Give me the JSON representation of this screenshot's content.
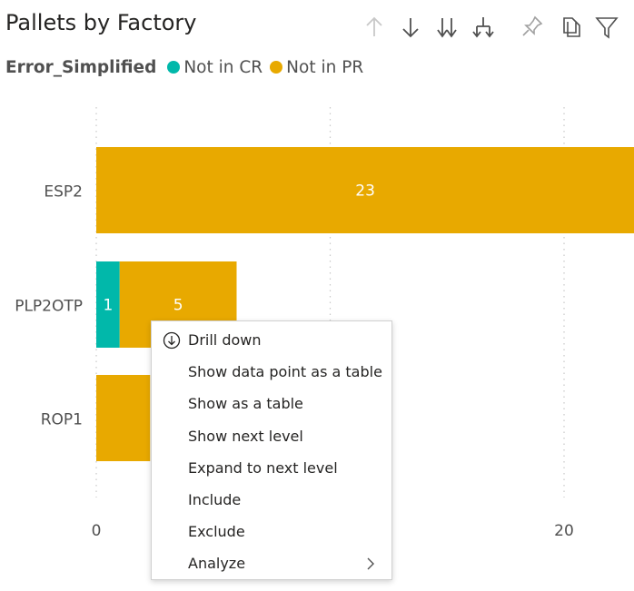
{
  "visual": {
    "title": "Pallets by Factory",
    "toolbar": [
      {
        "icon": "arrow-up-icon"
      },
      {
        "icon": "arrow-down-icon"
      },
      {
        "icon": "double-arrow-down-icon"
      },
      {
        "icon": "expand-hierarchy-icon"
      },
      {
        "icon": "pin-icon"
      },
      {
        "icon": "copy-icon"
      },
      {
        "icon": "filter-icon"
      }
    ]
  },
  "legend": {
    "title": "Error_Simplified",
    "items": [
      {
        "label": "Not in CR",
        "color": "#01B8AA"
      },
      {
        "label": "Not in PR",
        "color": "#E8A900"
      }
    ]
  },
  "chart_data": {
    "type": "bar",
    "orientation": "horizontal",
    "stacked": true,
    "categories": [
      "ESP2",
      "PLP2OTP",
      "ROP1"
    ],
    "series": [
      {
        "name": "Not in CR",
        "color": "#01B8AA",
        "values": [
          0,
          1,
          0
        ]
      },
      {
        "name": "Not in PR",
        "color": "#E8A900",
        "values": [
          23,
          5,
          2.3
        ]
      }
    ],
    "data_labels": [
      {
        "category": "ESP2",
        "series": "Not in PR",
        "text": "23"
      },
      {
        "category": "PLP2OTP",
        "series": "Not in CR",
        "text": "1"
      },
      {
        "category": "PLP2OTP",
        "series": "Not in PR",
        "text": "5"
      }
    ],
    "x_ticks": [
      "0",
      "20"
    ],
    "x_tick_values": [
      0,
      10,
      20
    ],
    "xlim": [
      0,
      23
    ],
    "grid": true,
    "legend_position": "top-left"
  },
  "context_menu": {
    "items": [
      {
        "label": "Drill down",
        "icon": "drill-down-icon"
      },
      {
        "label": "Show data point as a table"
      },
      {
        "label": "Show as a table"
      },
      {
        "label": "Show next level"
      },
      {
        "label": "Expand to next level"
      },
      {
        "label": "Include"
      },
      {
        "label": "Exclude"
      },
      {
        "label": "Analyze",
        "submenu": true
      }
    ]
  }
}
